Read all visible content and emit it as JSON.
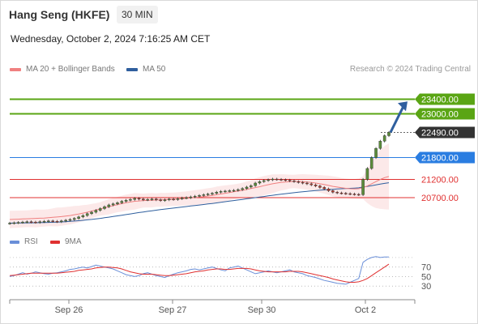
{
  "header": {
    "title": "Hang Seng (HKFE)",
    "interval": "30 MIN",
    "timestamp": "Wednesday, October 2, 2024 7:16:25 AM CET"
  },
  "legend": {
    "ma20": "MA 20 + Bollinger Bands",
    "ma50": "MA 50",
    "credit": "Research © 2024 Trading Central"
  },
  "rsi_legend": {
    "rsi": "RSI",
    "ma9": "9MA"
  },
  "colors": {
    "green_level": "#5aa514",
    "blue_level": "#2a7de1",
    "red_level": "#e03030",
    "dark_tag": "#333333",
    "arrow": "#2f5f9e",
    "ma20": "#f08080",
    "ma50": "#2f5f9e",
    "rsi": "#6a8fd8",
    "rsi_ma": "#e03030"
  },
  "chart_data": {
    "type": "candlestick",
    "x_ticks": [
      "Sep 26",
      "Sep 27",
      "Sep 30",
      "Oct 2"
    ],
    "ylim": [
      19900,
      23900
    ],
    "levels": [
      {
        "label": "23400.00",
        "value": 23400,
        "kind": "resistance"
      },
      {
        "label": "23000.00",
        "value": 23000,
        "kind": "resistance"
      },
      {
        "label": "22490.00",
        "value": 22490,
        "kind": "last"
      },
      {
        "label": "21800.00",
        "value": 21800,
        "kind": "pivot"
      },
      {
        "label": "21200.00",
        "value": 21200,
        "kind": "support"
      },
      {
        "label": "20700.00",
        "value": 20700,
        "kind": "support"
      }
    ],
    "close": [
      20000,
      20010,
      20020,
      20030,
      20040,
      20030,
      20020,
      20040,
      20050,
      20060,
      20050,
      20040,
      20060,
      20080,
      20100,
      20130,
      20170,
      20210,
      20260,
      20300,
      20350,
      20400,
      20450,
      20500,
      20530,
      20560,
      20600,
      20630,
      20650,
      20680,
      20660,
      20640,
      20650,
      20660,
      20640,
      20620,
      20640,
      20660,
      20650,
      20670,
      20690,
      20700,
      20720,
      20740,
      20760,
      20780,
      20800,
      20820,
      20850,
      20870,
      20880,
      20890,
      20900,
      20920,
      20950,
      20990,
      21030,
      21100,
      21140,
      21170,
      21190,
      21210,
      21200,
      21190,
      21180,
      21160,
      21140,
      21120,
      21100,
      21080,
      21050,
      21020,
      20980,
      20940,
      20890,
      20850,
      20830,
      20820,
      20810,
      20800,
      20790,
      20780,
      21200,
      21500,
      21800,
      22050,
      22250,
      22400,
      22490
    ],
    "ma20": [
      20100,
      20105,
      20110,
      20115,
      20120,
      20125,
      20130,
      20135,
      20140,
      20150,
      20160,
      20170,
      20180,
      20195,
      20210,
      20230,
      20250,
      20275,
      20300,
      20330,
      20360,
      20390,
      20420,
      20450,
      20480,
      20510,
      20535,
      20560,
      20580,
      20600,
      20610,
      20620,
      20625,
      20630,
      20635,
      20640,
      20645,
      20650,
      20655,
      20660,
      20670,
      20680,
      20690,
      20700,
      20715,
      20730,
      20745,
      20760,
      20780,
      20800,
      20820,
      20840,
      20860,
      20880,
      20900,
      20925,
      20950,
      20975,
      21000,
      21030,
      21055,
      21080,
      21100,
      21120,
      21130,
      21140,
      21145,
      21145,
      21140,
      21130,
      21115,
      21100,
      21080,
      21060,
      21035,
      21010,
      20990,
      20970,
      20955,
      20945,
      20940,
      20945,
      20975,
      21020,
      21080,
      21140,
      21200,
      21250,
      21280
    ],
    "ma50": [
      20000,
      20002,
      20004,
      20006,
      20008,
      20010,
      20012,
      20014,
      20017,
      20020,
      20024,
      20028,
      20033,
      20040,
      20048,
      20057,
      20067,
      20078,
      20090,
      20103,
      20117,
      20132,
      20148,
      20165,
      20182,
      20200,
      20218,
      20236,
      20254,
      20272,
      20290,
      20307,
      20324,
      20340,
      20356,
      20371,
      20386,
      20400,
      20414,
      20428,
      20442,
      20456,
      20470,
      20484,
      20498,
      20512,
      20526,
      20541,
      20556,
      20572,
      20588,
      20604,
      20620,
      20636,
      20652,
      20668,
      20684,
      20700,
      20716,
      20732,
      20748,
      20764,
      20780,
      20794,
      20808,
      20822,
      20836,
      20850,
      20862,
      20874,
      20885,
      20895,
      20905,
      20914,
      20922,
      20930,
      20937,
      20944,
      20950,
      20956,
      20962,
      20968,
      20990,
      21010,
      21030,
      21050,
      21070,
      21090,
      21110
    ],
    "rsi": [
      50,
      52,
      55,
      58,
      55,
      57,
      60,
      58,
      56,
      55,
      57,
      58,
      60,
      62,
      65,
      66,
      68,
      70,
      68,
      71,
      74,
      72,
      70,
      68,
      66,
      62,
      58,
      54,
      52,
      50,
      52,
      56,
      58,
      55,
      52,
      50,
      48,
      52,
      55,
      58,
      60,
      62,
      65,
      66,
      64,
      66,
      68,
      70,
      67,
      64,
      62,
      68,
      70,
      72,
      68,
      64,
      60,
      56,
      58,
      60,
      62,
      60,
      58,
      60,
      62,
      64,
      60,
      58,
      56,
      52,
      50,
      48,
      45,
      42,
      40,
      38,
      36,
      35,
      34,
      38,
      42,
      46,
      80,
      86,
      90,
      92,
      90,
      91,
      91
    ],
    "rsi_ma": [
      52,
      53,
      54,
      55,
      56,
      57,
      57,
      57,
      57,
      57,
      57,
      57,
      58,
      59,
      60,
      61,
      63,
      64,
      65,
      66,
      68,
      69,
      70,
      70,
      69,
      68,
      66,
      63,
      60,
      58,
      56,
      55,
      55,
      55,
      54,
      53,
      52,
      52,
      53,
      54,
      55,
      56,
      58,
      60,
      61,
      62,
      64,
      65,
      66,
      66,
      65,
      65,
      66,
      67,
      67,
      67,
      66,
      64,
      62,
      61,
      60,
      60,
      60,
      60,
      60,
      61,
      61,
      61,
      60,
      58,
      56,
      54,
      52,
      50,
      48,
      45,
      43,
      41,
      39,
      38,
      38,
      39,
      42,
      46,
      52,
      58,
      64,
      70,
      76
    ],
    "rsi_ticks": [
      "70",
      "50",
      "30"
    ],
    "rsi_lim": [
      10,
      100
    ]
  }
}
